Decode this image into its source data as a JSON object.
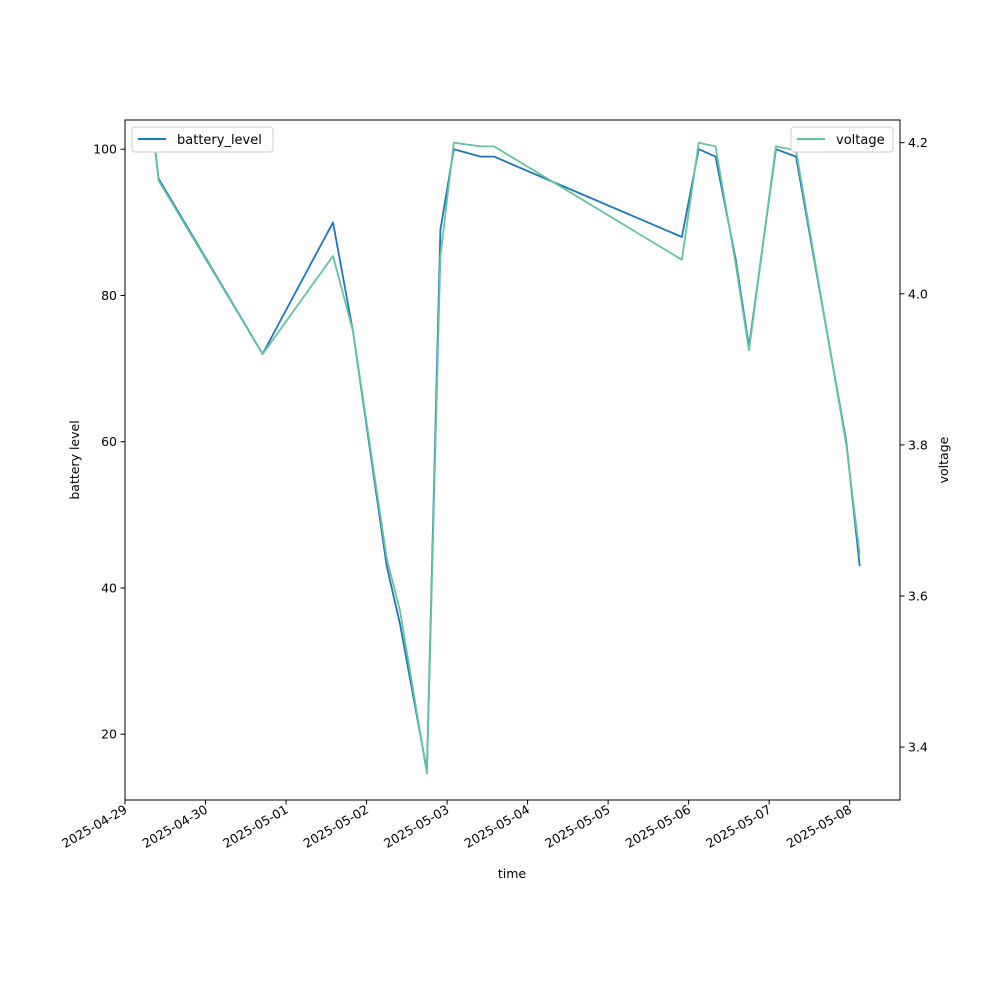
{
  "chart_data": {
    "type": "line",
    "xlabel": "time",
    "ylabel_left": "battery level",
    "ylabel_right": "voltage",
    "xlim": [
      "2025-04-29T00:00",
      "2025-05-08T15:00"
    ],
    "ylim_left": [
      11,
      104
    ],
    "ylim_right": [
      3.33,
      4.23
    ],
    "x_ticks": [
      "2025-04-29",
      "2025-04-30",
      "2025-05-01",
      "2025-05-02",
      "2025-05-03",
      "2025-05-04",
      "2025-05-05",
      "2025-05-06",
      "2025-05-07",
      "2025-05-08"
    ],
    "y_ticks_left": [
      20,
      40,
      60,
      80,
      100
    ],
    "y_ticks_right": [
      3.4,
      3.6,
      3.8,
      4.0,
      4.2
    ],
    "grid": false,
    "series": [
      {
        "name": "battery_level",
        "axis": "left",
        "color": "#1f77b4",
        "legend_position": "upper-left",
        "points": [
          {
            "x": "2025-04-29T09:00",
            "y": 100
          },
          {
            "x": "2025-04-29T10:00",
            "y": 96
          },
          {
            "x": "2025-04-30T17:00",
            "y": 72
          },
          {
            "x": "2025-05-01T14:00",
            "y": 90
          },
          {
            "x": "2025-05-01T20:00",
            "y": 75
          },
          {
            "x": "2025-05-02T06:00",
            "y": 43
          },
          {
            "x": "2025-05-02T10:00",
            "y": 35
          },
          {
            "x": "2025-05-02T18:00",
            "y": 15
          },
          {
            "x": "2025-05-02T22:00",
            "y": 89
          },
          {
            "x": "2025-05-03T02:00",
            "y": 100
          },
          {
            "x": "2025-05-03T10:00",
            "y": 99
          },
          {
            "x": "2025-05-03T14:00",
            "y": 99
          },
          {
            "x": "2025-05-05T22:00",
            "y": 88
          },
          {
            "x": "2025-05-06T03:00",
            "y": 100
          },
          {
            "x": "2025-05-06T08:00",
            "y": 99
          },
          {
            "x": "2025-05-06T14:00",
            "y": 85
          },
          {
            "x": "2025-05-06T18:00",
            "y": 73
          },
          {
            "x": "2025-05-07T02:00",
            "y": 100
          },
          {
            "x": "2025-05-07T08:00",
            "y": 99
          },
          {
            "x": "2025-05-07T23:00",
            "y": 60
          },
          {
            "x": "2025-05-08T03:00",
            "y": 43
          }
        ]
      },
      {
        "name": "voltage",
        "axis": "right",
        "color": "#66c2a5",
        "legend_position": "upper-right",
        "points": [
          {
            "x": "2025-04-29T09:00",
            "y": 4.19
          },
          {
            "x": "2025-04-29T10:00",
            "y": 4.15
          },
          {
            "x": "2025-04-30T17:00",
            "y": 3.92
          },
          {
            "x": "2025-05-01T14:00",
            "y": 4.05
          },
          {
            "x": "2025-05-01T20:00",
            "y": 3.95
          },
          {
            "x": "2025-05-02T06:00",
            "y": 3.65
          },
          {
            "x": "2025-05-02T10:00",
            "y": 3.58
          },
          {
            "x": "2025-05-02T18:00",
            "y": 3.365
          },
          {
            "x": "2025-05-02T22:00",
            "y": 4.05
          },
          {
            "x": "2025-05-03T02:00",
            "y": 4.2
          },
          {
            "x": "2025-05-03T10:00",
            "y": 4.195
          },
          {
            "x": "2025-05-03T14:00",
            "y": 4.195
          },
          {
            "x": "2025-05-05T22:00",
            "y": 4.045
          },
          {
            "x": "2025-05-06T03:00",
            "y": 4.2
          },
          {
            "x": "2025-05-06T08:00",
            "y": 4.195
          },
          {
            "x": "2025-05-06T14:00",
            "y": 4.04
          },
          {
            "x": "2025-05-06T18:00",
            "y": 3.925
          },
          {
            "x": "2025-05-07T02:00",
            "y": 4.195
          },
          {
            "x": "2025-05-07T08:00",
            "y": 4.19
          },
          {
            "x": "2025-05-07T23:00",
            "y": 3.8
          },
          {
            "x": "2025-05-08T03:00",
            "y": 3.655
          }
        ]
      }
    ]
  }
}
